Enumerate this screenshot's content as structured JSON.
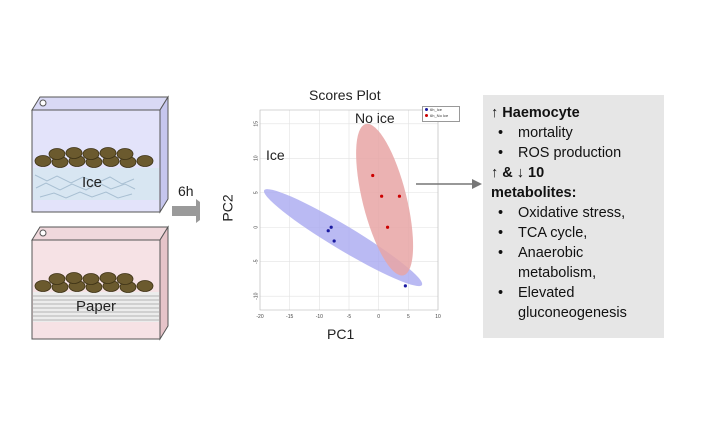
{
  "left_panel": {
    "ice_label": "Ice",
    "paper_label": "Paper",
    "arrow_label": "6h"
  },
  "plot": {
    "title": "Scores Plot",
    "xlabel": "PC1",
    "ylabel": "PC2",
    "group_labels": {
      "ice": "Ice",
      "no_ice": "No ice"
    },
    "legend": [
      "6h_Ice",
      "6h_No Ice"
    ],
    "x_ticks": [
      "-20",
      "-15",
      "-10",
      "-5",
      "0",
      "5",
      "10"
    ],
    "y_ticks": [
      "15",
      "10",
      "5",
      "0",
      "-5",
      "-10"
    ]
  },
  "chart_data": {
    "type": "scatter",
    "title": "Scores Plot",
    "xlabel": "PC1",
    "ylabel": "PC2",
    "xlim": [
      -20,
      10
    ],
    "ylim": [
      -12,
      17
    ],
    "grid": true,
    "legend_position": "top-right",
    "series": [
      {
        "name": "6h_Ice",
        "color": "#1a1aa0",
        "points": [
          [
            -8.5,
            -0.5
          ],
          [
            -8,
            0
          ],
          [
            -7.5,
            -2
          ],
          [
            4.5,
            -8.5
          ]
        ]
      },
      {
        "name": "6h_No Ice",
        "color": "#cc0000",
        "points": [
          [
            -1,
            7.5
          ],
          [
            0.5,
            4.5
          ],
          [
            3.5,
            4.5
          ],
          [
            1.5,
            0
          ]
        ]
      }
    ],
    "ellipse_colors": {
      "ice": "#a9a9f0",
      "no_ice": "#e8a5a5"
    }
  },
  "summary": {
    "heading1": "↑ Haemocyte",
    "group1": [
      "mortality",
      "ROS production"
    ],
    "heading2a": "↑ & ↓ 10",
    "heading2b": "metabolites:",
    "group2": [
      "Oxidative stress,",
      "TCA cycle,",
      "Anaerobic metabolism,",
      "Elevated gluconeogenesis"
    ]
  }
}
